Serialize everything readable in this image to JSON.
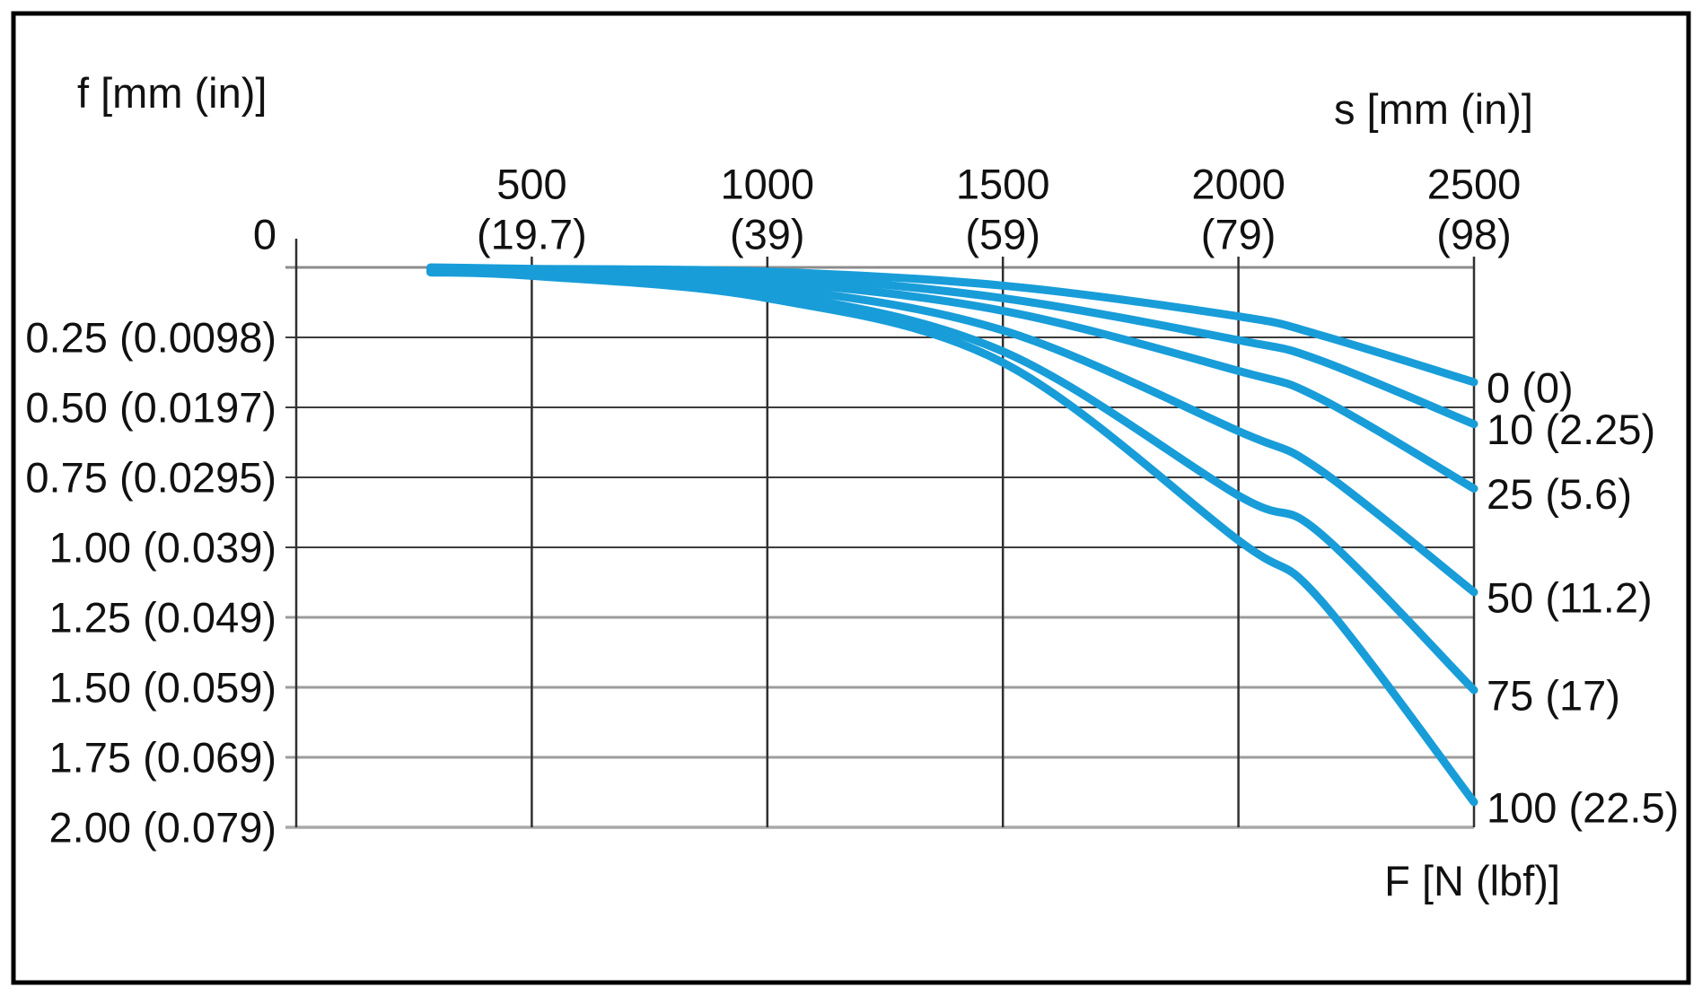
{
  "chart_data": {
    "type": "line",
    "description": "Deflection f versus stroke s for several forces F (load-deflection curves)",
    "x_axis": {
      "label": "s [mm (in)]",
      "unit": "mm (in)",
      "range": [
        0,
        2500
      ],
      "ticks": [
        {
          "value": 0,
          "line1": "0",
          "line2": ""
        },
        {
          "value": 500,
          "line1": "500",
          "line2": "(19.7)"
        },
        {
          "value": 1000,
          "line1": "1000",
          "line2": "(39)"
        },
        {
          "value": 1500,
          "line1": "1500",
          "line2": "(59)"
        },
        {
          "value": 2000,
          "line1": "2000",
          "line2": "(79)"
        },
        {
          "value": 2500,
          "line1": "2500",
          "line2": "(98)"
        }
      ]
    },
    "y_axis": {
      "label": "f [mm (in)]",
      "unit": "mm (in)",
      "range": [
        0,
        2.0
      ],
      "direction": "downward",
      "ticks": [
        {
          "value": 0.0,
          "label": ""
        },
        {
          "value": 0.25,
          "label": "0.25 (0.0098)"
        },
        {
          "value": 0.5,
          "label": "0.50 (0.0197)"
        },
        {
          "value": 0.75,
          "label": "0.75 (0.0295)"
        },
        {
          "value": 1.0,
          "label": "1.00 (0.039)"
        },
        {
          "value": 1.25,
          "label": "1.25 (0.049)"
        },
        {
          "value": 1.5,
          "label": "1.50 (0.059)"
        },
        {
          "value": 1.75,
          "label": "1.75 (0.069)"
        },
        {
          "value": 2.0,
          "label": "2.00 (0.079)"
        }
      ]
    },
    "series_axis_label": "F [N (lbf)]",
    "legend_position": "right-of-curve-endpoints",
    "grid": true,
    "series": [
      {
        "name": "0 (0)",
        "force_N": 0,
        "points": [
          [
            285,
            0.0
          ],
          [
            500,
            0.005
          ],
          [
            1000,
            0.015
          ],
          [
            1500,
            0.065
          ],
          [
            2000,
            0.175
          ],
          [
            2170,
            0.24
          ],
          [
            2500,
            0.41
          ]
        ]
      },
      {
        "name": "10 (2.25)",
        "force_N": 10,
        "points": [
          [
            285,
            0.005
          ],
          [
            500,
            0.008
          ],
          [
            1000,
            0.03
          ],
          [
            1500,
            0.11
          ],
          [
            2000,
            0.26
          ],
          [
            2170,
            0.33
          ],
          [
            2500,
            0.56
          ]
        ]
      },
      {
        "name": "25 (5.6)",
        "force_N": 25,
        "points": [
          [
            285,
            0.008
          ],
          [
            500,
            0.012
          ],
          [
            1000,
            0.05
          ],
          [
            1500,
            0.155
          ],
          [
            2000,
            0.37
          ],
          [
            2170,
            0.465
          ],
          [
            2500,
            0.79
          ]
        ]
      },
      {
        "name": "50 (11.2)",
        "force_N": 50,
        "points": [
          [
            285,
            0.012
          ],
          [
            500,
            0.018
          ],
          [
            1000,
            0.07
          ],
          [
            1500,
            0.225
          ],
          [
            2000,
            0.585
          ],
          [
            2170,
            0.72
          ],
          [
            2500,
            1.16
          ]
        ]
      },
      {
        "name": "75 (17)",
        "force_N": 75,
        "points": [
          [
            285,
            0.015
          ],
          [
            500,
            0.024
          ],
          [
            1000,
            0.09
          ],
          [
            1500,
            0.3
          ],
          [
            2000,
            0.815
          ],
          [
            2170,
            0.945
          ],
          [
            2500,
            1.51
          ]
        ]
      },
      {
        "name": "100 (22.5)",
        "force_N": 100,
        "points": [
          [
            285,
            0.018
          ],
          [
            500,
            0.03
          ],
          [
            1000,
            0.11
          ],
          [
            1500,
            0.34
          ],
          [
            2000,
            0.975
          ],
          [
            2170,
            1.18
          ],
          [
            2500,
            1.91
          ]
        ]
      }
    ],
    "colors": {
      "curve": "#189dd9",
      "grid_dark": "#3c3c3c",
      "grid_light": "#9c9c9c",
      "axis_top": "#8c8c8c",
      "axis_bottom": "#a8a8a8",
      "border": "#000000",
      "text": "#111111"
    }
  }
}
